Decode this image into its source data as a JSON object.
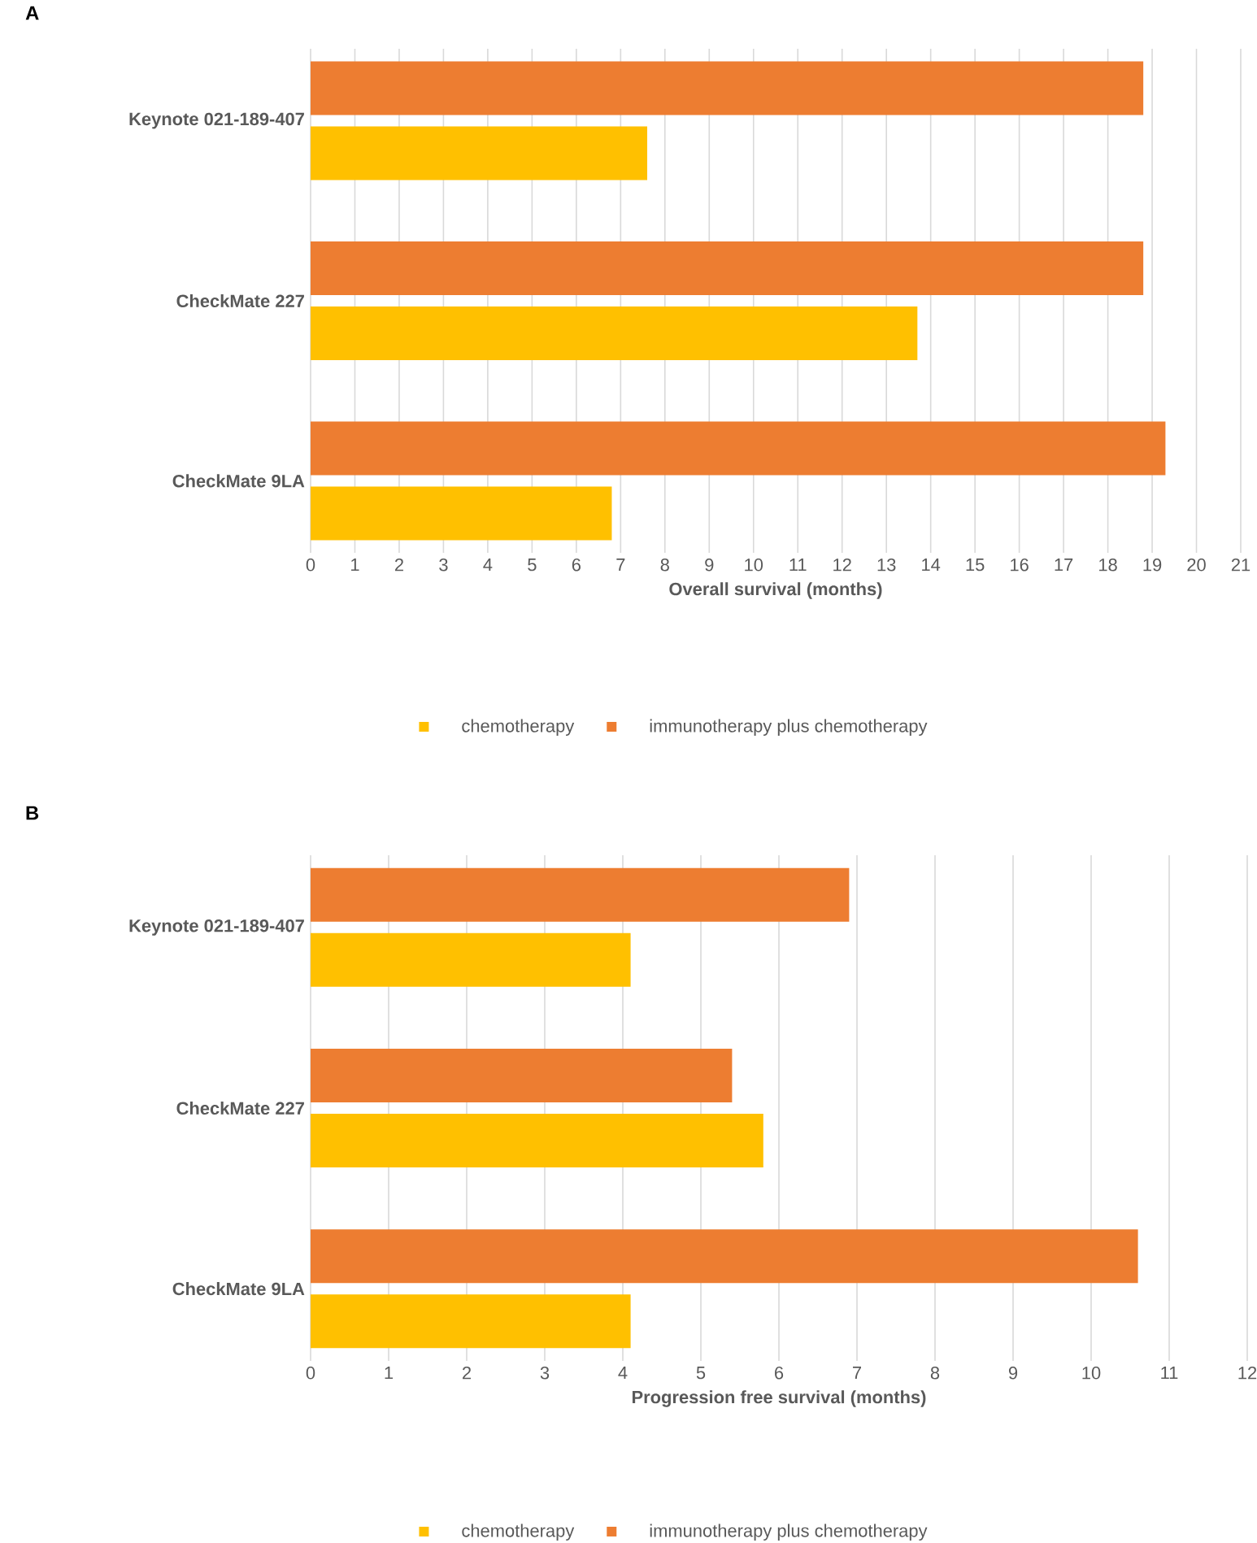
{
  "chart_data": [
    {
      "type": "bar",
      "orientation": "horizontal",
      "title": "A",
      "categories": [
        "Keynote 021-189-407",
        "CheckMate 227",
        "CheckMate 9LA"
      ],
      "series": [
        {
          "name": "chemotherapy",
          "color": "#ffc000",
          "values": [
            7.6,
            13.7,
            6.8
          ]
        },
        {
          "name": "immunotherapy plus chemotherapy",
          "color": "#ed7d31",
          "values": [
            18.8,
            18.8,
            19.3
          ]
        }
      ],
      "xlabel": "Overall survival (months)",
      "xlim": [
        0,
        21
      ],
      "xticks": [
        0,
        1,
        2,
        3,
        4,
        5,
        6,
        7,
        8,
        9,
        10,
        11,
        12,
        13,
        14,
        15,
        16,
        17,
        18,
        19,
        20,
        21
      ],
      "grid": "x",
      "legend": "bottom"
    },
    {
      "type": "bar",
      "orientation": "horizontal",
      "title": "B",
      "categories": [
        "Keynote 021-189-407",
        "CheckMate 227",
        "CheckMate 9LA"
      ],
      "series": [
        {
          "name": "chemotherapy",
          "color": "#ffc000",
          "values": [
            4.1,
            5.8,
            4.1
          ]
        },
        {
          "name": "immunotherapy plus chemotherapy",
          "color": "#ed7d31",
          "values": [
            6.9,
            5.4,
            10.6
          ]
        }
      ],
      "xlabel": "Progression free survival (months)",
      "xlim": [
        0,
        12
      ],
      "xticks": [
        0,
        1,
        2,
        3,
        4,
        5,
        6,
        7,
        8,
        9,
        10,
        11,
        12
      ],
      "grid": "x",
      "legend": "bottom"
    }
  ]
}
